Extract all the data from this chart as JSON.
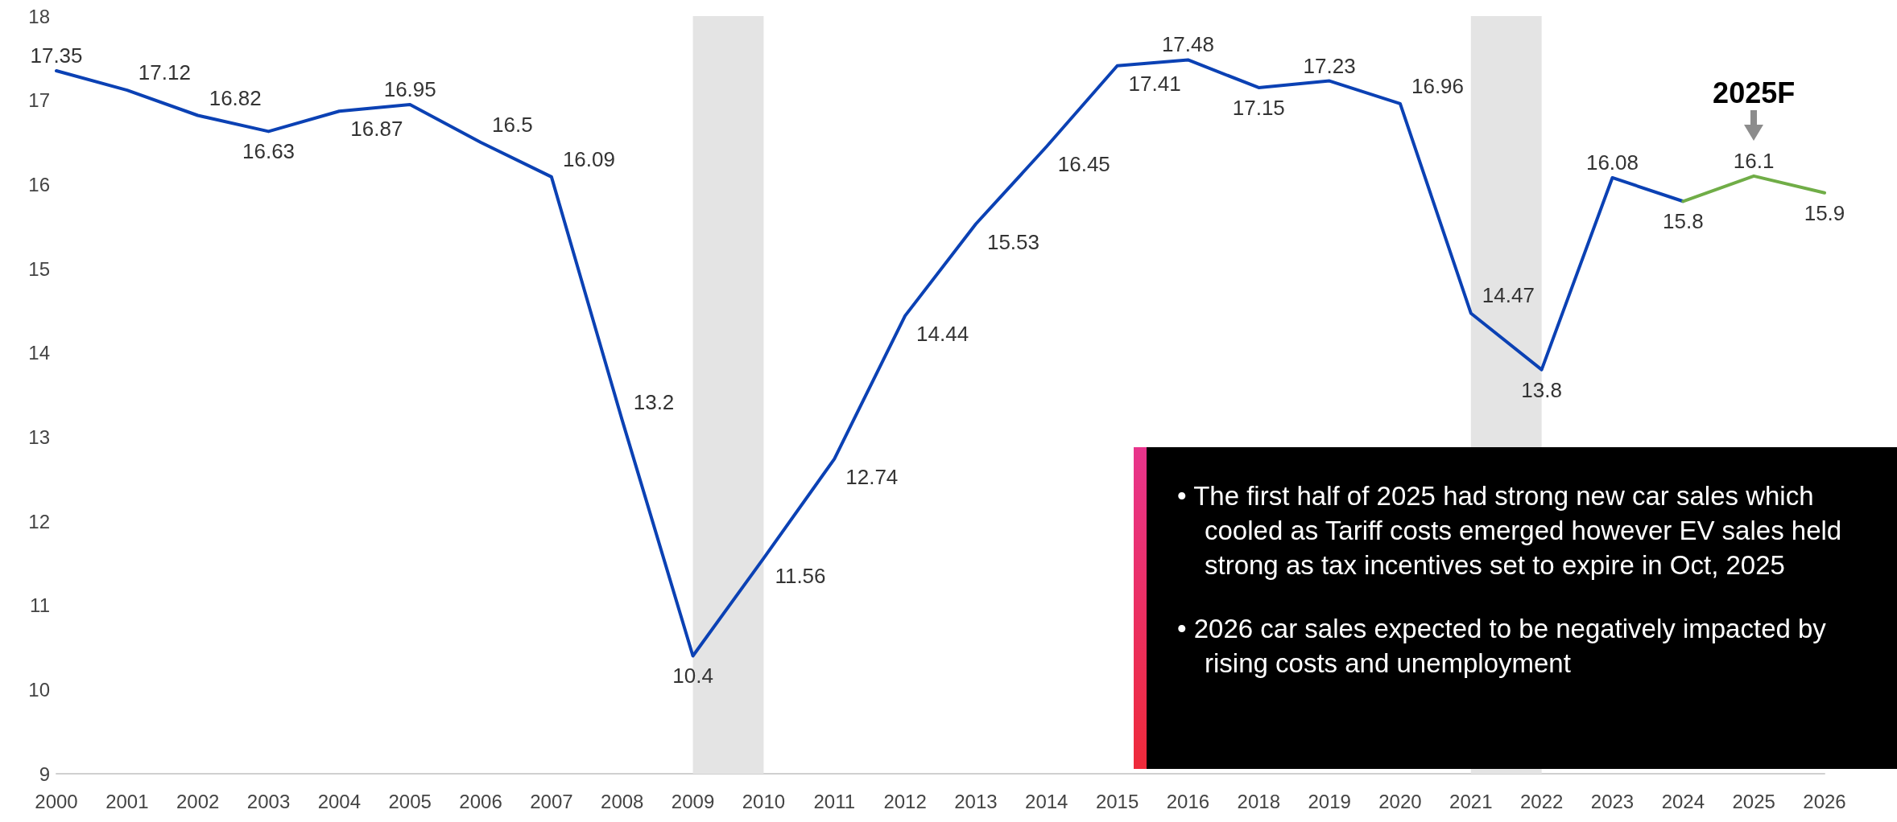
{
  "chart_data": {
    "type": "line",
    "categories": [
      "2000",
      "2001",
      "2002",
      "2003",
      "2004",
      "2005",
      "2006",
      "2007",
      "2008",
      "2009",
      "2010",
      "2011",
      "2012",
      "2013",
      "2014",
      "2015",
      "2016",
      "2018",
      "2019",
      "2020",
      "2021",
      "2022",
      "2023",
      "2024",
      "2025",
      "2026"
    ],
    "series": [
      {
        "color": "#0b41b4",
        "values": [
          17.35,
          17.12,
          16.82,
          16.63,
          16.87,
          16.95,
          16.5,
          16.09,
          13.2,
          10.4,
          11.56,
          12.74,
          14.44,
          15.53,
          16.45,
          17.41,
          17.48,
          17.15,
          17.23,
          16.96,
          14.47,
          13.8,
          16.08,
          15.8,
          null,
          null
        ],
        "value_labels": [
          "17.35",
          "17.12",
          "16.82",
          "16.63",
          "16.87",
          "16.95",
          "16.5",
          "16.09",
          "13.2",
          "10.4",
          "11.56",
          "12.74",
          "14.44",
          "15.53",
          "16.45",
          "17.41",
          "17.48",
          "17.15",
          "17.23",
          "16.96",
          "14.47",
          "13.8",
          "16.08",
          "15.8",
          null,
          null
        ]
      },
      {
        "color": "#70ad47",
        "values": [
          null,
          null,
          null,
          null,
          null,
          null,
          null,
          null,
          null,
          null,
          null,
          null,
          null,
          null,
          null,
          null,
          null,
          null,
          null,
          null,
          null,
          null,
          null,
          15.8,
          16.1,
          15.9
        ],
        "value_labels": [
          null,
          null,
          null,
          null,
          null,
          null,
          null,
          null,
          null,
          null,
          null,
          null,
          null,
          null,
          null,
          null,
          null,
          null,
          null,
          null,
          null,
          null,
          null,
          null,
          "16.1",
          "15.9"
        ]
      }
    ],
    "ylim": [
      9,
      18
    ],
    "yticks": [
      9,
      10,
      11,
      12,
      13,
      14,
      15,
      16,
      17,
      18
    ],
    "grid": false,
    "marker": "none",
    "line_style": "solid",
    "bands": [
      {
        "axis": "x",
        "from": "2009",
        "to": "2010",
        "color": "#e4e4e4"
      },
      {
        "axis": "x",
        "from": "2021",
        "to": "2022",
        "color": "#e4e4e4"
      }
    ],
    "annotations": [
      {
        "text": "2025F",
        "x": "2025",
        "y": 16.1
      },
      "• The first half of 2025 had strong new car sales which cooled as Tariff costs emerged however EV sales held strong as tax incentives set to expire in Oct, 2025",
      "• 2026 car sales expected to be negatively impacted by rising costs and unemployment"
    ]
  }
}
